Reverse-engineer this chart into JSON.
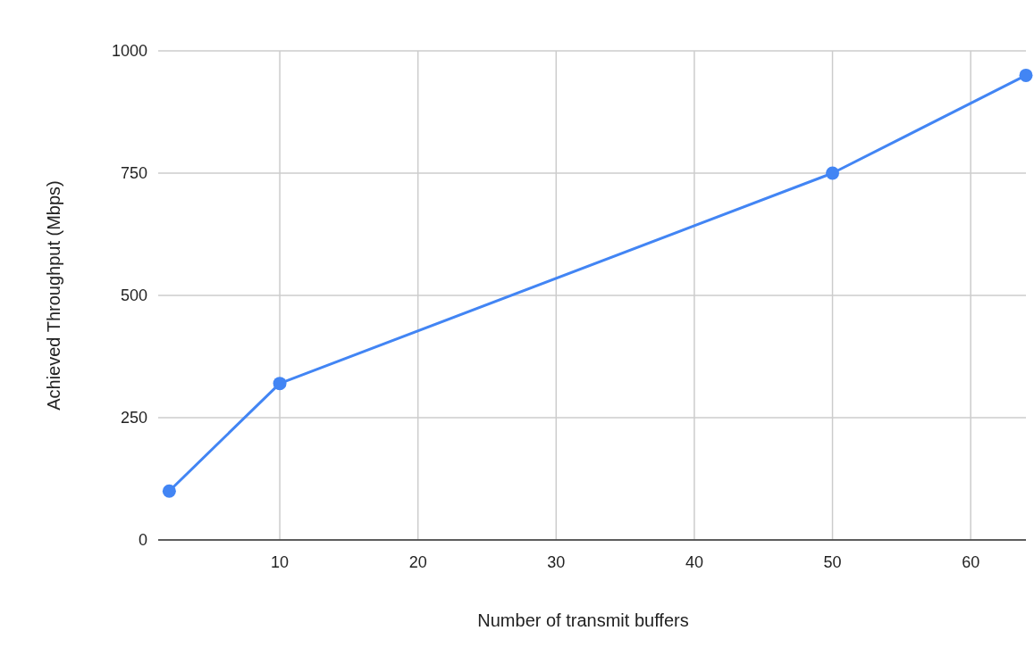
{
  "chart_data": {
    "type": "line",
    "xlabel": "Number of transmit buffers",
    "ylabel": "Achieved Throughput (Mbps)",
    "x": [
      2,
      10,
      50,
      64
    ],
    "series": [
      {
        "color": "#4285f4",
        "values": [
          100,
          320,
          750,
          950
        ]
      }
    ],
    "xlim": [
      1.2,
      64
    ],
    "xticks": [
      10,
      20,
      30,
      40,
      50,
      60
    ],
    "ylim": [
      0,
      1000
    ],
    "yticks": [
      0,
      250,
      500,
      750,
      1000
    ],
    "grid": true,
    "marker": "circle",
    "line_style": "solid"
  }
}
